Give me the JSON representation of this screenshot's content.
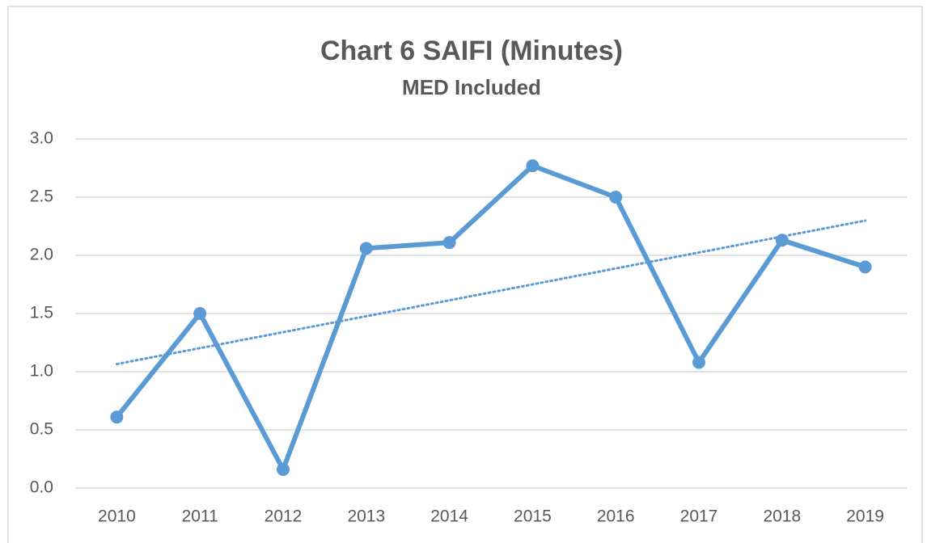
{
  "chart_data": {
    "type": "line",
    "title": "Chart 6 SAIFI (Minutes)",
    "subtitle": "MED Included",
    "categories": [
      "2010",
      "2011",
      "2012",
      "2013",
      "2014",
      "2015",
      "2016",
      "2017",
      "2018",
      "2019"
    ],
    "series": [
      {
        "name": "SAIFI",
        "color": "#5b9bd5",
        "values": [
          0.61,
          1.5,
          0.16,
          2.06,
          2.11,
          2.77,
          2.5,
          1.08,
          2.13,
          1.9
        ]
      }
    ],
    "ylim": [
      0,
      3
    ],
    "yticks": [
      {
        "value": 0,
        "label": "0.0"
      },
      {
        "value": 0.5,
        "label": "0.5"
      },
      {
        "value": 1,
        "label": "1.0"
      },
      {
        "value": 1.5,
        "label": "1.5"
      },
      {
        "value": 2,
        "label": "2.0"
      },
      {
        "value": 2.5,
        "label": "2.5"
      },
      {
        "value": 3,
        "label": "3.0"
      }
    ],
    "grid": true,
    "trendline": "linear"
  }
}
